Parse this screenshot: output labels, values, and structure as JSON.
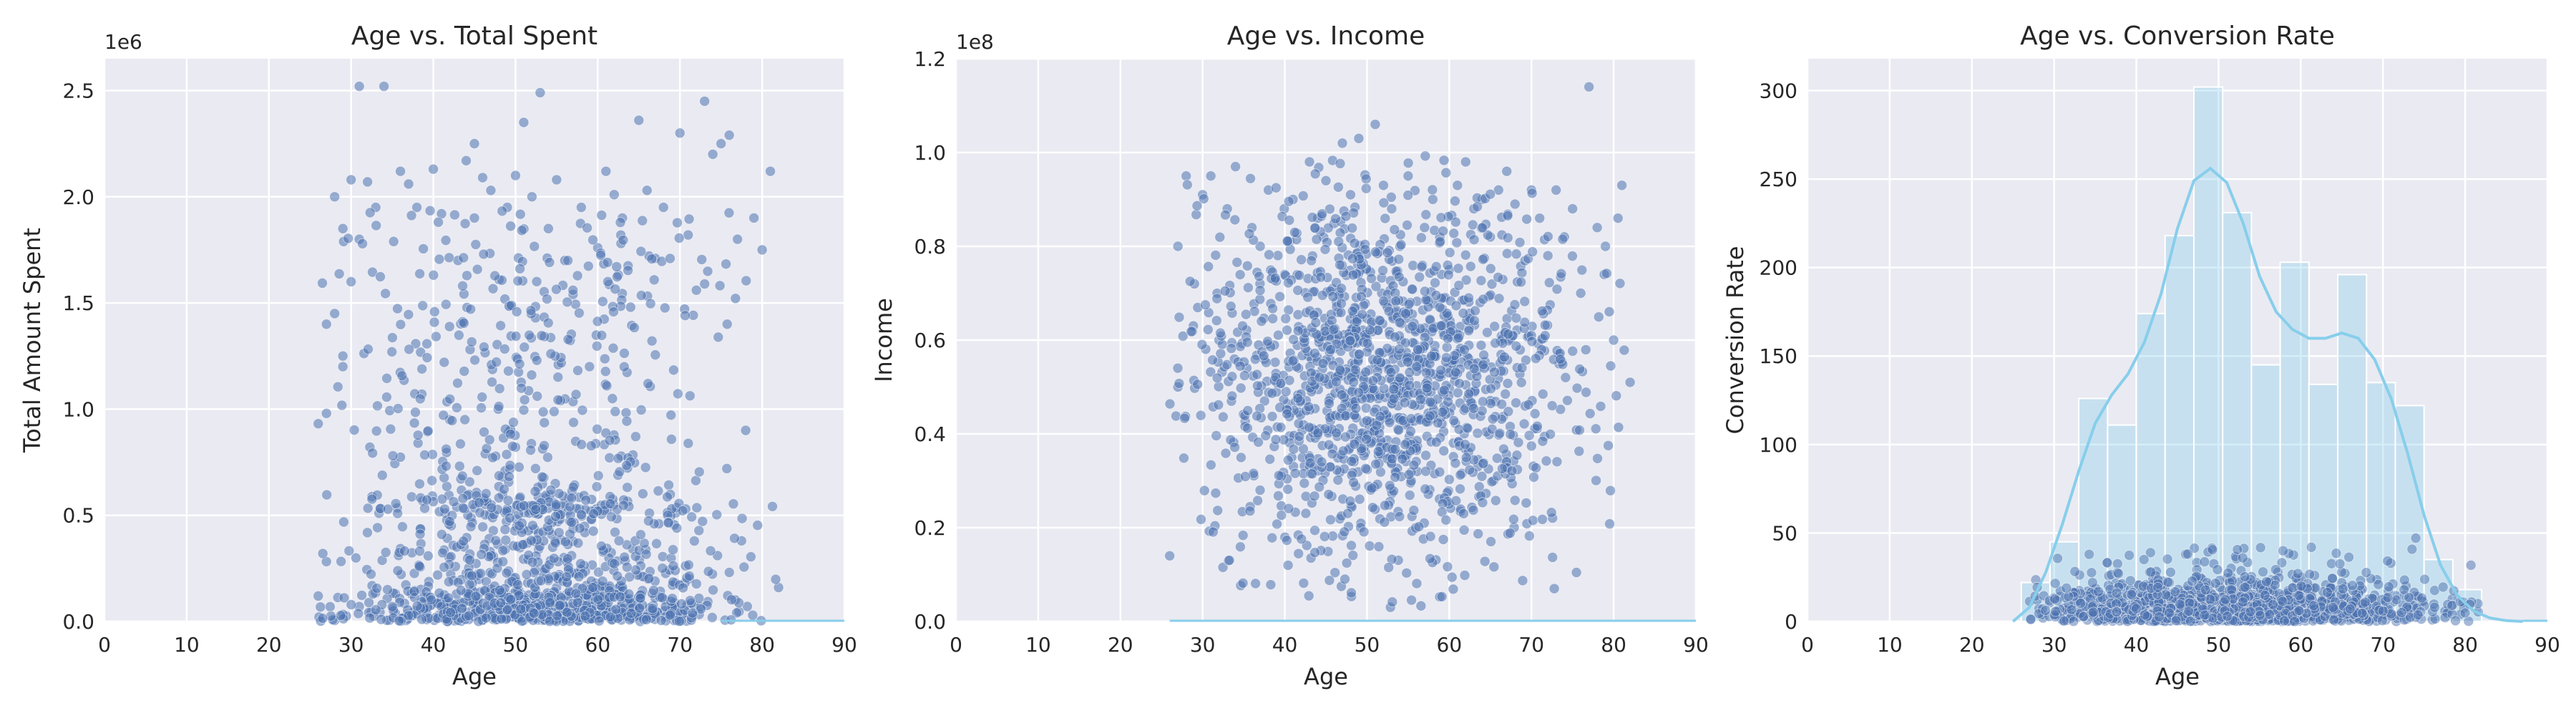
{
  "colors": {
    "background": "#ffffff",
    "panel": "#eaeaf2",
    "grid": "#ffffff",
    "points": "#4c72b0",
    "hist_bars": "#87ceeb",
    "kde_line": "#87ceeb",
    "text": "#262626"
  },
  "chart_data": [
    {
      "type": "scatter",
      "title": "Age vs. Total Spent",
      "xlabel": "Age",
      "ylabel": "Total Amount Spent",
      "offset_label": "1e6",
      "xlim": [
        0,
        90
      ],
      "ylim": [
        0,
        2650000
      ],
      "xticks": [
        0,
        10,
        20,
        30,
        40,
        50,
        60,
        70,
        80,
        90
      ],
      "xtick_labels": [
        "0",
        "10",
        "20",
        "30",
        "40",
        "50",
        "60",
        "70",
        "80",
        "90"
      ],
      "yticks": [
        0,
        500000,
        1000000,
        1500000,
        2000000,
        2500000
      ],
      "ytick_labels": [
        "0.0",
        "0.5",
        "1.0",
        "1.5",
        "2.0",
        "2.5"
      ],
      "grid": true,
      "series": [
        {
          "color": "#4c72b0",
          "x": [
            26,
            27,
            27,
            28,
            28,
            29,
            29,
            29,
            30,
            30,
            31,
            31,
            32,
            33,
            34,
            36,
            37,
            38,
            40,
            41,
            43,
            44,
            45,
            45,
            46,
            47,
            48,
            49,
            50,
            51,
            52,
            53,
            54,
            55,
            56,
            57,
            58,
            59,
            60,
            61,
            62,
            63,
            64,
            65,
            66,
            67,
            68,
            70,
            71,
            72,
            73,
            74,
            75,
            76,
            77,
            78,
            79,
            80,
            81,
            82
          ],
          "y": [
            120000,
            1400000,
            980000,
            1450000,
            2000000,
            1200000,
            1850000,
            1250000,
            2080000,
            1600000,
            2520000,
            1800000,
            2070000,
            1950000,
            2520000,
            2120000,
            2060000,
            1950000,
            2130000,
            1920000,
            1700000,
            2170000,
            2250000,
            1900000,
            2090000,
            2030000,
            1610000,
            1950000,
            2100000,
            2350000,
            2000000,
            2490000,
            1850000,
            2080000,
            1700000,
            1540000,
            1950000,
            1200000,
            1760000,
            2120000,
            2010000,
            1900000,
            1480000,
            2360000,
            2030000,
            1710000,
            1950000,
            2300000,
            1820000,
            1560000,
            2450000,
            2200000,
            2250000,
            2290000,
            1800000,
            900000,
            1900000,
            1750000,
            2120000,
            160000
          ]
        }
      ]
    },
    {
      "type": "scatter",
      "title": "Age vs. Income",
      "xlabel": "Age",
      "ylabel": "Income",
      "offset_label": "1e8",
      "xlim": [
        0,
        90
      ],
      "ylim": [
        0,
        120000000
      ],
      "xticks": [
        0,
        10,
        20,
        30,
        40,
        50,
        60,
        70,
        80,
        90
      ],
      "xtick_labels": [
        "0",
        "10",
        "20",
        "30",
        "40",
        "50",
        "60",
        "70",
        "80",
        "90"
      ],
      "yticks": [
        0,
        20000000,
        40000000,
        60000000,
        80000000,
        100000000,
        120000000
      ],
      "ytick_labels": [
        "0.0",
        "0.2",
        "0.4",
        "0.6",
        "0.8",
        "1.0",
        "1.2"
      ],
      "grid": true,
      "series": [
        {
          "color": "#4c72b0",
          "x": [
            26,
            27,
            27,
            28,
            29,
            30,
            31,
            32,
            33,
            34,
            36,
            37,
            38,
            40,
            41,
            43,
            44,
            45,
            47,
            48,
            49,
            50,
            51,
            52,
            53,
            54,
            55,
            57,
            58,
            60,
            61,
            62,
            63,
            64,
            65,
            66,
            67,
            68,
            70,
            71,
            72,
            73,
            74,
            75,
            76,
            77,
            78,
            79,
            80,
            81,
            82
          ],
          "y": [
            14000000,
            80000000,
            50000000,
            95000000,
            72000000,
            91000000,
            95000000,
            60000000,
            88000000,
            97000000,
            84000000,
            80000000,
            92000000,
            74000000,
            90000000,
            98000000,
            86000000,
            94000000,
            102000000,
            91000000,
            103000000,
            75000000,
            106000000,
            93000000,
            88000000,
            80000000,
            95000000,
            84000000,
            90000000,
            75000000,
            93000000,
            98000000,
            88000000,
            90000000,
            82000000,
            92000000,
            96000000,
            89000000,
            92000000,
            86000000,
            78000000,
            92000000,
            82000000,
            88000000,
            70000000,
            114000000,
            84000000,
            80000000,
            60000000,
            93000000,
            51000000
          ]
        }
      ]
    },
    {
      "type": "histogram",
      "title": "Age vs. Conversion Rate",
      "xlabel": "Age",
      "ylabel": "Conversion Rate",
      "xlim": [
        0,
        90
      ],
      "ylim": [
        0,
        318
      ],
      "xticks": [
        0,
        10,
        20,
        30,
        40,
        50,
        60,
        70,
        80,
        90
      ],
      "xtick_labels": [
        "0",
        "10",
        "20",
        "30",
        "40",
        "50",
        "60",
        "70",
        "80",
        "90"
      ],
      "yticks": [
        0,
        50,
        100,
        150,
        200,
        250,
        300
      ],
      "ytick_labels": [
        "0",
        "50",
        "100",
        "150",
        "200",
        "250",
        "300"
      ],
      "grid": true,
      "bins": [
        {
          "x0": 26,
          "x1": 29.5,
          "count": 22
        },
        {
          "x0": 29.5,
          "x1": 33,
          "count": 45
        },
        {
          "x0": 33,
          "x1": 36.5,
          "count": 126
        },
        {
          "x0": 36.5,
          "x1": 40,
          "count": 111
        },
        {
          "x0": 40,
          "x1": 43.5,
          "count": 174
        },
        {
          "x0": 43.5,
          "x1": 47,
          "count": 218
        },
        {
          "x0": 47,
          "x1": 50.5,
          "count": 302
        },
        {
          "x0": 50.5,
          "x1": 54,
          "count": 231
        },
        {
          "x0": 54,
          "x1": 57.5,
          "count": 145
        },
        {
          "x0": 57.5,
          "x1": 61,
          "count": 203
        },
        {
          "x0": 61,
          "x1": 64.5,
          "count": 134
        },
        {
          "x0": 64.5,
          "x1": 68,
          "count": 196
        },
        {
          "x0": 68,
          "x1": 71.5,
          "count": 135
        },
        {
          "x0": 71.5,
          "x1": 75,
          "count": 122
        },
        {
          "x0": 75,
          "x1": 78.5,
          "count": 35
        },
        {
          "x0": 78.5,
          "x1": 82,
          "count": 18
        }
      ],
      "kde": {
        "x": [
          25,
          27,
          29,
          31,
          33,
          35,
          37,
          39,
          41,
          43,
          45,
          47,
          49,
          51,
          53,
          55,
          57,
          59,
          61,
          63,
          65,
          67,
          69,
          71,
          73,
          75,
          77,
          79,
          81,
          83,
          85,
          87
        ],
        "y": [
          0,
          8,
          28,
          55,
          85,
          112,
          128,
          140,
          158,
          185,
          222,
          249,
          256,
          248,
          225,
          195,
          175,
          165,
          160,
          160,
          163,
          160,
          148,
          126,
          95,
          60,
          32,
          15,
          6,
          2,
          0.5,
          0
        ]
      },
      "points": {
        "color": "#4c72b0",
        "age_range": [
          26,
          82
        ],
        "y_range": [
          0,
          45
        ]
      }
    }
  ]
}
